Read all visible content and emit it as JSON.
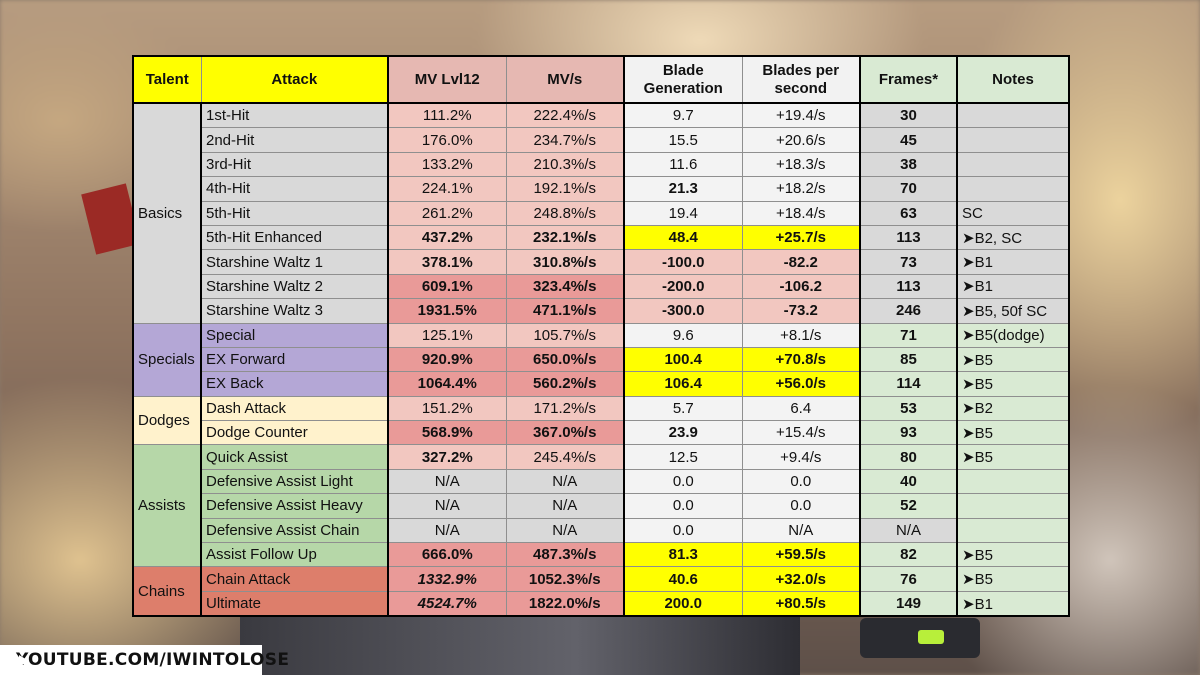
{
  "headers": {
    "talent": "Talent",
    "attack": "Attack",
    "mv_lvl12": "MV Lvl12",
    "mv_per_s": "MV/s",
    "blade_gen_1": "Blade",
    "blade_gen_2": "Generation",
    "blades_ps_1": "Blades per",
    "blades_ps_2": "second",
    "frames": "Frames*",
    "notes": "Notes"
  },
  "groups": {
    "basics": "Basics",
    "specials": "Specials",
    "dodges": "Dodges",
    "assists": "Assists",
    "chains": "Chains"
  },
  "rows": [
    {
      "attack": "1st-Hit",
      "mv": "111.2%",
      "mvs": "222.4%/s",
      "blade": "9.7",
      "bps": "+19.4/s",
      "frames": "30",
      "notes": ""
    },
    {
      "attack": "2nd-Hit",
      "mv": "176.0%",
      "mvs": "234.7%/s",
      "blade": "15.5",
      "bps": "+20.6/s",
      "frames": "45",
      "notes": ""
    },
    {
      "attack": "3rd-Hit",
      "mv": "133.2%",
      "mvs": "210.3%/s",
      "blade": "11.6",
      "bps": "+18.3/s",
      "frames": "38",
      "notes": ""
    },
    {
      "attack": "4th-Hit",
      "mv": "224.1%",
      "mvs": "192.1%/s",
      "blade": "21.3",
      "bps": "+18.2/s",
      "frames": "70",
      "notes": ""
    },
    {
      "attack": "5th-Hit",
      "mv": "261.2%",
      "mvs": "248.8%/s",
      "blade": "19.4",
      "bps": "+18.4/s",
      "frames": "63",
      "notes": "SC"
    },
    {
      "attack": "5th-Hit Enhanced",
      "mv": "437.2%",
      "mvs": "232.1%/s",
      "blade": "48.4",
      "bps": "+25.7/s",
      "frames": "113",
      "notes": "➤B2, SC"
    },
    {
      "attack": "Starshine Waltz 1",
      "mv": "378.1%",
      "mvs": "310.8%/s",
      "blade": "-100.0",
      "bps": "-82.2",
      "frames": "73",
      "notes": "➤B1"
    },
    {
      "attack": "Starshine Waltz 2",
      "mv": "609.1%",
      "mvs": "323.4%/s",
      "blade": "-200.0",
      "bps": "-106.2",
      "frames": "113",
      "notes": "➤B1"
    },
    {
      "attack": "Starshine Waltz 3",
      "mv": "1931.5%",
      "mvs": "471.1%/s",
      "blade": "-300.0",
      "bps": "-73.2",
      "frames": "246",
      "notes": "➤B5, 50f SC"
    },
    {
      "attack": "Special",
      "mv": "125.1%",
      "mvs": "105.7%/s",
      "blade": "9.6",
      "bps": "+8.1/s",
      "frames": "71",
      "notes": "➤B5(dodge)"
    },
    {
      "attack": "EX Forward",
      "mv": "920.9%",
      "mvs": "650.0%/s",
      "blade": "100.4",
      "bps": "+70.8/s",
      "frames": "85",
      "notes": "➤B5"
    },
    {
      "attack": "EX Back",
      "mv": "1064.4%",
      "mvs": "560.2%/s",
      "blade": "106.4",
      "bps": "+56.0/s",
      "frames": "114",
      "notes": "➤B5"
    },
    {
      "attack": "Dash Attack",
      "mv": "151.2%",
      "mvs": "171.2%/s",
      "blade": "5.7",
      "bps": "6.4",
      "frames": "53",
      "notes": "➤B2"
    },
    {
      "attack": "Dodge Counter",
      "mv": "568.9%",
      "mvs": "367.0%/s",
      "blade": "23.9",
      "bps": "+15.4/s",
      "frames": "93",
      "notes": "➤B5"
    },
    {
      "attack": "Quick Assist",
      "mv": "327.2%",
      "mvs": "245.4%/s",
      "blade": "12.5",
      "bps": "+9.4/s",
      "frames": "80",
      "notes": "➤B5"
    },
    {
      "attack": "Defensive Assist Light",
      "mv": "N/A",
      "mvs": "N/A",
      "blade": "0.0",
      "bps": "0.0",
      "frames": "40",
      "notes": ""
    },
    {
      "attack": "Defensive Assist Heavy",
      "mv": "N/A",
      "mvs": "N/A",
      "blade": "0.0",
      "bps": "0.0",
      "frames": "52",
      "notes": ""
    },
    {
      "attack": "Defensive Assist Chain",
      "mv": "N/A",
      "mvs": "N/A",
      "blade": "0.0",
      "bps": "N/A",
      "frames": "N/A",
      "notes": ""
    },
    {
      "attack": "Assist Follow Up",
      "mv": "666.0%",
      "mvs": "487.3%/s",
      "blade": "81.3",
      "bps": "+59.5/s",
      "frames": "82",
      "notes": "➤B5"
    },
    {
      "attack": "Chain Attack",
      "mv": "1332.9%",
      "mvs": "1052.3%/s",
      "blade": "40.6",
      "bps": "+32.0/s",
      "frames": "76",
      "notes": "➤B5"
    },
    {
      "attack": "Ultimate",
      "mv": "4524.7%",
      "mvs": "1822.0%/s",
      "blade": "200.0",
      "bps": "+80.5/s",
      "frames": "149",
      "notes": "➤B1"
    }
  ],
  "watermark": {
    "icon": "youtube-logo",
    "text": "YOUTUBE.COM/IWINTOLOSE"
  },
  "colors": {
    "highlight_yellow": "#ffff00",
    "basics": "#d9d9d9",
    "specials": "#b4a7d6",
    "dodges": "#fff2cc",
    "assists": "#b6d7a8",
    "chains": "#dd7e6b",
    "mv_light": "#f2c7c0",
    "mv_strong": "#e99a98",
    "frames_notes": "#d9ead3"
  }
}
